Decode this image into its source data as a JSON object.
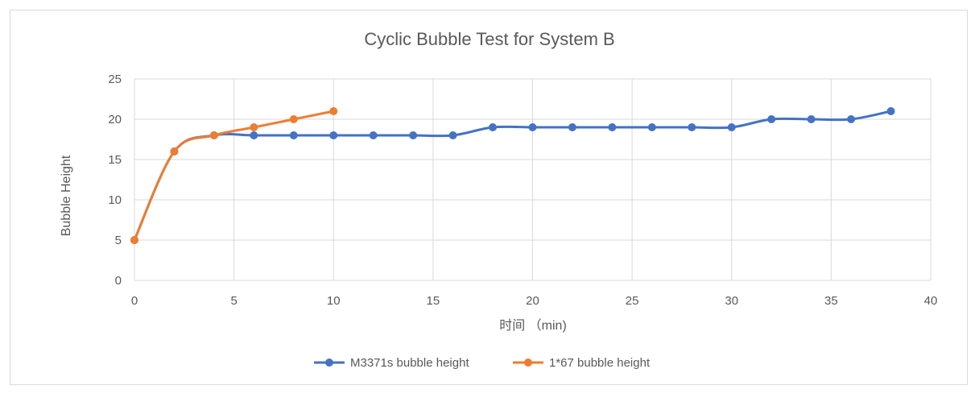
{
  "chart_data": {
    "type": "scatter",
    "title": "Cyclic Bubble Test for System B",
    "xlabel": "时间 （min)",
    "ylabel": "Bubble Height",
    "xlim": [
      0,
      40
    ],
    "ylim": [
      0,
      25
    ],
    "xticks": [
      0,
      5,
      10,
      15,
      20,
      25,
      30,
      35,
      40
    ],
    "yticks": [
      0,
      5,
      10,
      15,
      20,
      25
    ],
    "grid": true,
    "smoothed_lines": true,
    "legend_position": "bottom",
    "series": [
      {
        "name": "M3371s bubble height",
        "color": "#4472C4",
        "x": [
          0,
          2,
          4,
          6,
          8,
          10,
          12,
          14,
          16,
          18,
          20,
          22,
          24,
          26,
          28,
          30,
          32,
          34,
          36,
          38
        ],
        "y": [
          5,
          16,
          18,
          18,
          18,
          18,
          18,
          18,
          18,
          19,
          19,
          19,
          19,
          19,
          19,
          19,
          20,
          20,
          20,
          21
        ]
      },
      {
        "name": "1*67 bubble height",
        "color": "#ED7D31",
        "x": [
          0,
          2,
          4,
          6,
          8,
          10
        ],
        "y": [
          5,
          16,
          18,
          19,
          20,
          21
        ]
      }
    ]
  }
}
